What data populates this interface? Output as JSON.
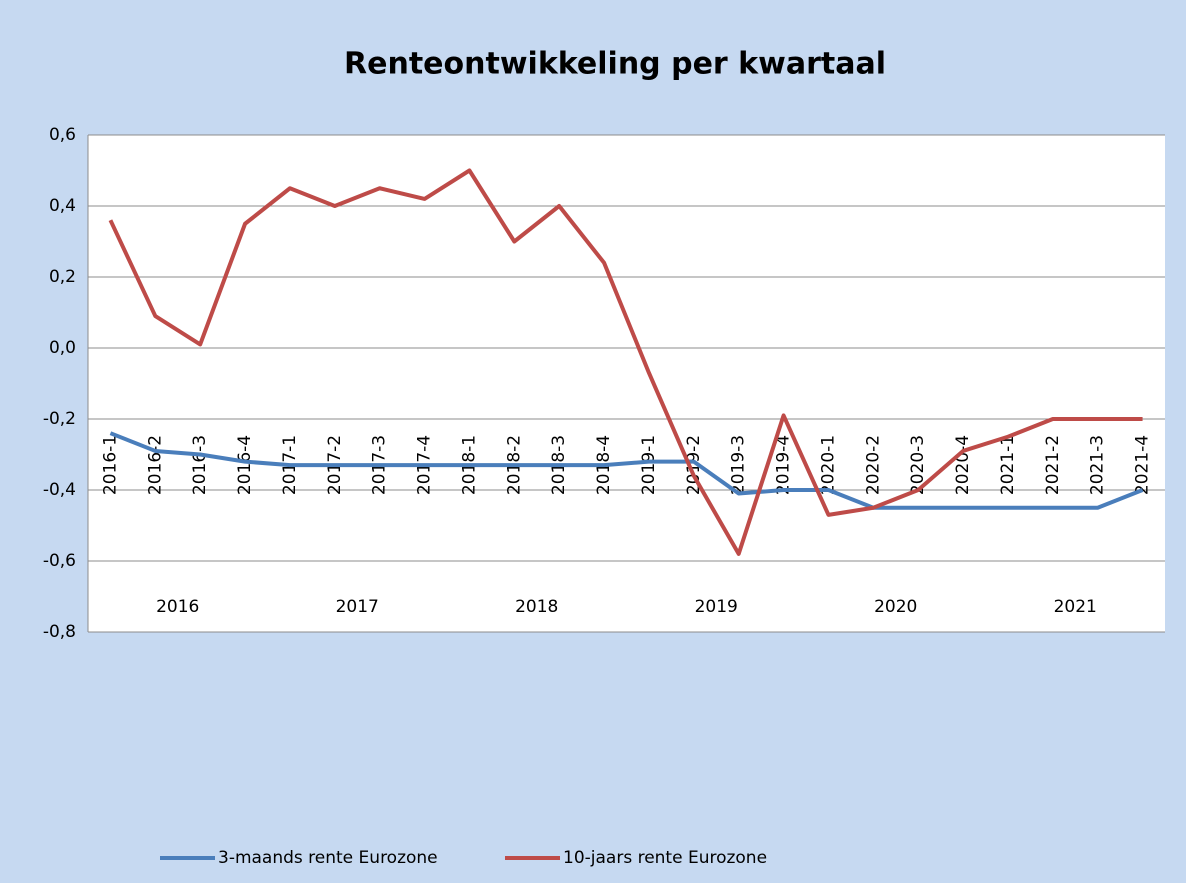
{
  "chart_data": {
    "type": "line",
    "title": "Renteontwikkeling  per kwartaal",
    "categories": [
      "2016-1",
      "2016-2",
      "2016-3",
      "2016-4",
      "2017-1",
      "2017-2",
      "2017-3",
      "2017-4",
      "2018-1",
      "2018-2",
      "2018-3",
      "2018-4",
      "2019-1",
      "2019-2",
      "2019-3",
      "2019-4",
      "2020-1",
      "2020-2",
      "2020-3",
      "2020-4",
      "2021-1",
      "2021-2",
      "2021-3",
      "2021-4"
    ],
    "year_groups": [
      "2016",
      "2017",
      "2018",
      "2019",
      "2020",
      "2021"
    ],
    "series": [
      {
        "name": "3-maands rente Eurozone",
        "color": "#4a7ebb",
        "values": [
          -0.24,
          -0.29,
          -0.3,
          -0.32,
          -0.33,
          -0.33,
          -0.33,
          -0.33,
          -0.33,
          -0.33,
          -0.33,
          -0.33,
          -0.32,
          -0.32,
          -0.41,
          -0.4,
          -0.4,
          -0.45,
          -0.45,
          -0.45,
          -0.45,
          -0.45,
          -0.45,
          -0.4
        ]
      },
      {
        "name": "10-jaars rente Eurozone",
        "color": "#be4b48",
        "values": [
          0.36,
          0.09,
          0.01,
          0.35,
          0.45,
          0.4,
          0.45,
          0.42,
          0.5,
          0.3,
          0.4,
          0.24,
          -0.07,
          -0.36,
          -0.58,
          -0.19,
          -0.47,
          -0.45,
          -0.4,
          -0.29,
          -0.25,
          -0.2,
          -0.2,
          -0.2
        ]
      }
    ],
    "ylim": [
      -0.8,
      0.6
    ],
    "yticks": [
      {
        "value": 0.6,
        "label": "0,6"
      },
      {
        "value": 0.4,
        "label": "0,4"
      },
      {
        "value": 0.2,
        "label": "0,2"
      },
      {
        "value": 0.0,
        "label": "0,0"
      },
      {
        "value": -0.2,
        "label": "-0,2"
      },
      {
        "value": -0.4,
        "label": "-0,4"
      },
      {
        "value": -0.6,
        "label": "-0,6"
      },
      {
        "value": -0.8,
        "label": "-0,8"
      }
    ],
    "grid": true,
    "legend": "bottom"
  }
}
